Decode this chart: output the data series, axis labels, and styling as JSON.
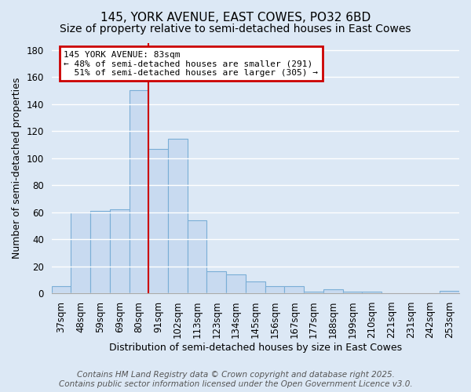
{
  "title": "145, YORK AVENUE, EAST COWES, PO32 6BD",
  "subtitle": "Size of property relative to semi-detached houses in East Cowes",
  "xlabel": "Distribution of semi-detached houses by size in East Cowes",
  "ylabel": "Number of semi-detached properties",
  "categories": [
    "37sqm",
    "48sqm",
    "59sqm",
    "69sqm",
    "80sqm",
    "91sqm",
    "102sqm",
    "113sqm",
    "123sqm",
    "134sqm",
    "145sqm",
    "156sqm",
    "167sqm",
    "177sqm",
    "188sqm",
    "199sqm",
    "210sqm",
    "221sqm",
    "231sqm",
    "242sqm",
    "253sqm"
  ],
  "values": [
    5,
    60,
    61,
    62,
    150,
    107,
    114,
    54,
    16,
    14,
    9,
    5,
    5,
    1,
    3,
    1,
    1,
    0,
    0,
    0,
    2
  ],
  "bar_color": "#c8daf0",
  "bar_edge_color": "#7aaed6",
  "property_size": "83sqm",
  "property_name": "145 YORK AVENUE",
  "pct_smaller": 48,
  "n_smaller": 291,
  "pct_larger": 51,
  "n_larger": 305,
  "annotation_box_color": "#ffffff",
  "annotation_box_edge": "#cc0000",
  "vline_color": "#cc0000",
  "vline_x": 4.5,
  "ylim": [
    0,
    185
  ],
  "yticks": [
    0,
    20,
    40,
    60,
    80,
    100,
    120,
    140,
    160,
    180
  ],
  "footer": "Contains HM Land Registry data © Crown copyright and database right 2025.\nContains public sector information licensed under the Open Government Licence v3.0.",
  "background_color": "#dce8f5",
  "plot_bg_color": "#dce8f5",
  "title_fontsize": 11,
  "label_fontsize": 9,
  "tick_fontsize": 8.5,
  "footer_fontsize": 7.5,
  "ann_fontsize": 8
}
